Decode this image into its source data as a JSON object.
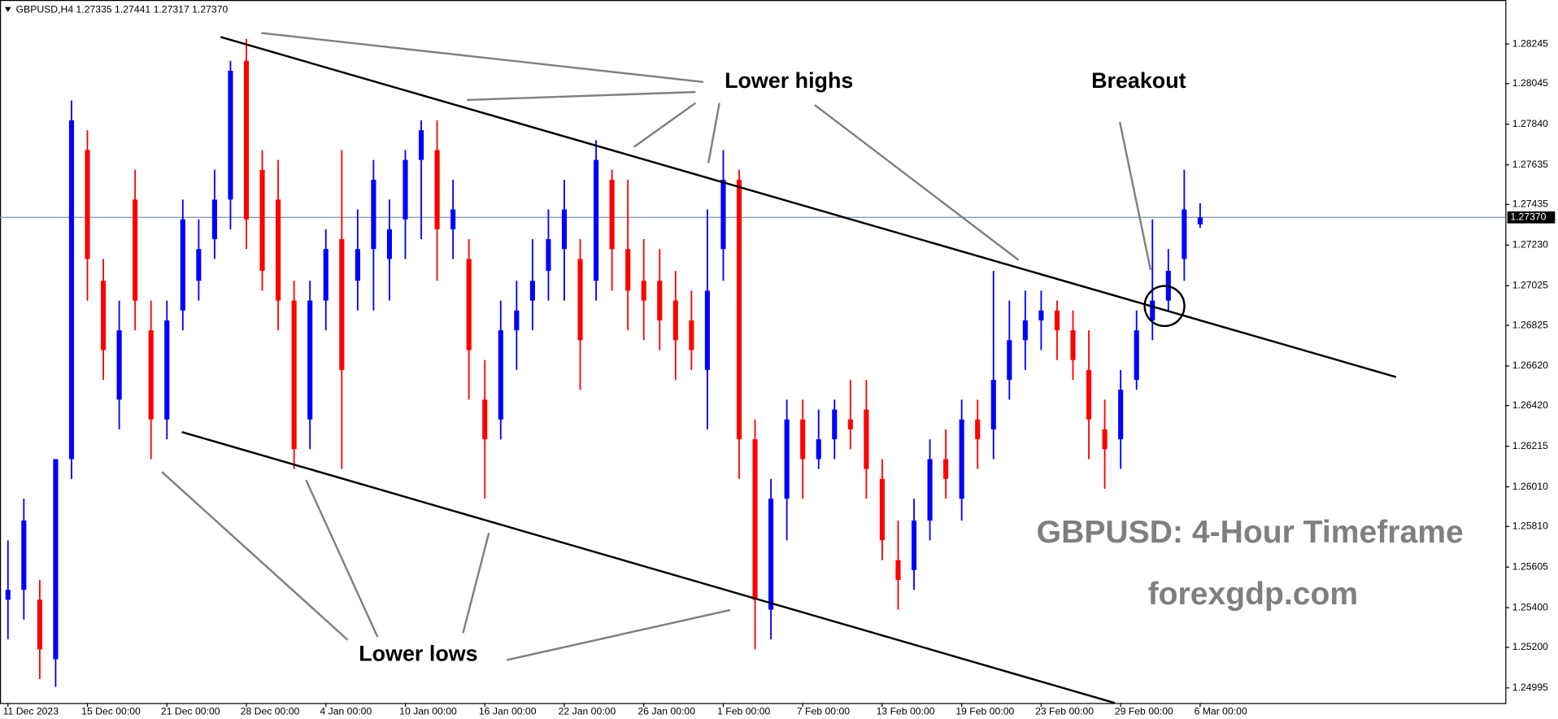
{
  "chart_data": {
    "type": "candlestick",
    "header": "GBPUSD,H4  1.27335 1.27441 1.27317 1.27370",
    "annotations": [
      "Lower highs",
      "Breakout",
      "Lower lows"
    ],
    "watermark": [
      "GBPUSD: 4-Hour Timeframe",
      "forexgdp.com"
    ],
    "up_color": "#0000ff",
    "down_color": "#ff0000",
    "open": [
      1.2544,
      1.2549,
      1.2544,
      1.2514,
      1.2615,
      1.2771,
      1.2705,
      1.2645,
      1.2746,
      1.268,
      1.2635,
      1.269,
      1.2705,
      1.2726,
      1.2746,
      1.2816,
      1.2761,
      1.2746,
      1.2695,
      1.2635,
      1.2695,
      1.2726,
      1.2705,
      1.2721,
      1.2716,
      1.2736,
      1.2766,
      1.2771,
      1.2731,
      1.2716,
      1.2645,
      1.2635,
      1.268,
      1.2695,
      1.271,
      1.2721,
      1.2716,
      1.2705,
      1.2756,
      1.2721,
      1.2705,
      1.2705,
      1.2695,
      1.2685,
      1.266,
      1.2721,
      1.2756,
      1.2625,
      1.2539,
      1.2595,
      1.2635,
      1.2615,
      1.2625,
      1.2635,
      1.264,
      1.2605,
      1.2564,
      1.2559,
      1.2584,
      1.2615,
      1.2595,
      1.2635,
      1.263,
      1.2655,
      1.2675,
      1.2685,
      1.269,
      1.268,
      1.266,
      1.263,
      1.2625,
      1.2655,
      1.2685,
      1.2695,
      1.2716,
      1.27335
    ],
    "high": [
      1.2574,
      1.2595,
      1.2554,
      1.2615,
      1.2796,
      1.2781,
      1.2716,
      1.2695,
      1.2761,
      1.2695,
      1.2695,
      1.2746,
      1.2736,
      1.2761,
      1.2816,
      1.2827,
      1.2771,
      1.2766,
      1.2705,
      1.2705,
      1.2731,
      1.2771,
      1.2741,
      1.2766,
      1.2746,
      1.2771,
      1.2786,
      1.2786,
      1.2756,
      1.2726,
      1.2665,
      1.2695,
      1.2705,
      1.2726,
      1.2741,
      1.2756,
      1.2726,
      1.2776,
      1.2761,
      1.2756,
      1.2726,
      1.2721,
      1.271,
      1.27,
      1.2741,
      1.2771,
      1.2761,
      1.2635,
      1.2605,
      1.2645,
      1.2645,
      1.264,
      1.2645,
      1.2655,
      1.2655,
      1.2615,
      1.2584,
      1.2595,
      1.2625,
      1.263,
      1.2645,
      1.2645,
      1.271,
      1.2695,
      1.27,
      1.27,
      1.2695,
      1.269,
      1.268,
      1.2645,
      1.266,
      1.269,
      1.2736,
      1.2721,
      1.2761,
      1.27441
    ],
    "low": [
      1.2524,
      1.2534,
      1.2504,
      1.25,
      1.2605,
      1.2695,
      1.2655,
      1.263,
      1.268,
      1.2615,
      1.2625,
      1.268,
      1.2695,
      1.2716,
      1.2731,
      1.2721,
      1.27,
      1.268,
      1.261,
      1.262,
      1.268,
      1.261,
      1.269,
      1.269,
      1.2695,
      1.2716,
      1.2726,
      1.2705,
      1.2716,
      1.2645,
      1.2595,
      1.2625,
      1.266,
      1.268,
      1.2695,
      1.2695,
      1.265,
      1.2695,
      1.27,
      1.268,
      1.2675,
      1.267,
      1.2655,
      1.266,
      1.263,
      1.2705,
      1.2605,
      1.2519,
      1.2524,
      1.2574,
      1.2595,
      1.261,
      1.2615,
      1.262,
      1.2595,
      1.2564,
      1.2539,
      1.2549,
      1.2574,
      1.2595,
      1.2584,
      1.261,
      1.2615,
      1.2645,
      1.266,
      1.267,
      1.2665,
      1.2655,
      1.2615,
      1.26,
      1.261,
      1.265,
      1.2675,
      1.269,
      1.2705,
      1.27317
    ],
    "close": [
      1.2549,
      1.2584,
      1.2519,
      1.2615,
      1.2786,
      1.2716,
      1.267,
      1.268,
      1.2695,
      1.2635,
      1.2685,
      1.2736,
      1.2721,
      1.2746,
      1.2811,
      1.2736,
      1.271,
      1.2695,
      1.262,
      1.2695,
      1.2721,
      1.266,
      1.2721,
      1.2756,
      1.2731,
      1.2766,
      1.2781,
      1.2731,
      1.2741,
      1.267,
      1.2625,
      1.268,
      1.269,
      1.2705,
      1.2726,
      1.2741,
      1.2675,
      1.2766,
      1.2721,
      1.27,
      1.2695,
      1.2685,
      1.2675,
      1.267,
      1.27,
      1.2756,
      1.2625,
      1.2544,
      1.2595,
      1.2635,
      1.2615,
      1.2625,
      1.264,
      1.263,
      1.261,
      1.2574,
      1.2554,
      1.2584,
      1.2615,
      1.2605,
      1.2635,
      1.2625,
      1.2655,
      1.2675,
      1.2685,
      1.269,
      1.268,
      1.2665,
      1.2635,
      1.262,
      1.265,
      1.268,
      1.2695,
      1.271,
      1.2741,
      1.2737
    ],
    "price_line": {
      "value": 1.2737,
      "label": "1.27370"
    },
    "xlim": [
      -0.5,
      94.2
    ],
    "xticks": [
      {
        "value": 0,
        "label": "11 Dec 2023"
      },
      {
        "value": 5,
        "label": "15 Dec 00:00"
      },
      {
        "value": 10,
        "label": "21 Dec 00:00"
      },
      {
        "value": 15,
        "label": "28 Dec 00:00"
      },
      {
        "value": 20,
        "label": "4 Jan 00:00"
      },
      {
        "value": 25,
        "label": "10 Jan 00:00"
      },
      {
        "value": 30,
        "label": "16 Jan 00:00"
      },
      {
        "value": 35,
        "label": "22 Jan 00:00"
      },
      {
        "value": 40,
        "label": "26 Jan 00:00"
      },
      {
        "value": 45,
        "label": "1 Feb 00:00"
      },
      {
        "value": 50,
        "label": "7 Feb 00:00"
      },
      {
        "value": 55,
        "label": "13 Feb 00:00"
      },
      {
        "value": 60,
        "label": "19 Feb 00:00"
      },
      {
        "value": 65,
        "label": "23 Feb 00:00"
      },
      {
        "value": 70,
        "label": "29 Feb 00:00"
      },
      {
        "value": 75,
        "label": "6 Mar 00:00"
      }
    ],
    "ylim": [
      1.24919,
      1.28452
    ],
    "yticks": [
      1.28245,
      1.28045,
      {
        "value": 1.2784,
        "label": "1.27840"
      },
      1.27635,
      1.27435,
      {
        "value": 1.2723,
        "label": "1.27230"
      },
      1.27025,
      1.26825,
      {
        "value": 1.2662,
        "label": "1.26620"
      },
      {
        "value": 1.2642,
        "label": "1.26420"
      },
      1.26215,
      {
        "value": 1.2601,
        "label": "1.26010"
      },
      {
        "value": 1.2581,
        "label": "1.25810"
      },
      1.25605,
      {
        "value": 1.254,
        "label": "1.25400"
      },
      {
        "value": 1.252,
        "label": "1.25200"
      },
      1.24995
    ]
  }
}
